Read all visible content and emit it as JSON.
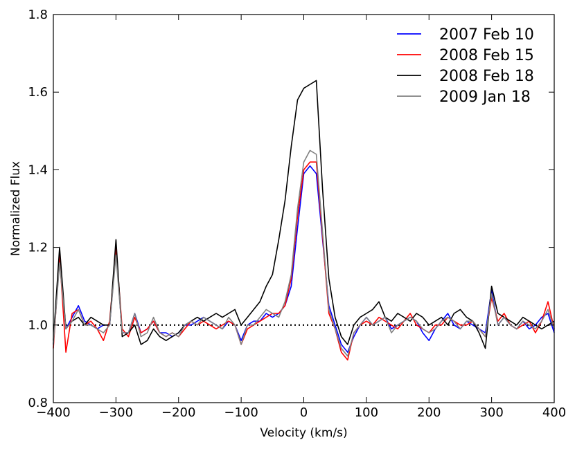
{
  "chart_data": {
    "type": "line",
    "title": "",
    "xlabel": "Velocity (km/s)",
    "ylabel": "Normalized Flux",
    "xlim": [
      -400,
      400
    ],
    "ylim": [
      0.8,
      1.8
    ],
    "xticks": [
      "−400",
      "−300",
      "−200",
      "−100",
      "0",
      "100",
      "200",
      "300",
      "400"
    ],
    "xtick_values": [
      -400,
      -300,
      -200,
      -100,
      0,
      100,
      200,
      300,
      400
    ],
    "yticks": [
      "0.8",
      "1.0",
      "1.2",
      "1.4",
      "1.6",
      "1.8"
    ],
    "ytick_values": [
      0.8,
      1.0,
      1.2,
      1.4,
      1.6,
      1.8
    ],
    "legend_position": "top-right",
    "reference_line": {
      "y": 1.0,
      "style": "dotted",
      "color": "#000000"
    },
    "x": [
      -400,
      -390,
      -380,
      -370,
      -360,
      -350,
      -340,
      -330,
      -320,
      -310,
      -300,
      -290,
      -280,
      -270,
      -260,
      -250,
      -240,
      -230,
      -220,
      -210,
      -200,
      -190,
      -180,
      -170,
      -160,
      -150,
      -140,
      -130,
      -120,
      -110,
      -100,
      -90,
      -80,
      -70,
      -60,
      -50,
      -40,
      -30,
      -20,
      -10,
      0,
      10,
      20,
      30,
      40,
      50,
      60,
      70,
      80,
      90,
      100,
      110,
      120,
      130,
      140,
      150,
      160,
      170,
      180,
      190,
      200,
      210,
      220,
      230,
      240,
      250,
      260,
      270,
      280,
      290,
      300,
      310,
      320,
      330,
      340,
      350,
      360,
      370,
      380,
      390,
      400
    ],
    "series": [
      {
        "name": "2007 Feb 10",
        "color": "#0000ff",
        "values": [
          0.95,
          1.17,
          0.99,
          1.02,
          1.05,
          1.01,
          1.0,
          0.99,
          1.0,
          1.0,
          1.19,
          0.98,
          0.98,
          1.03,
          0.98,
          0.99,
          1.01,
          0.98,
          0.98,
          0.97,
          0.98,
          1.0,
          1.0,
          1.01,
          1.02,
          1.01,
          1.0,
          0.99,
          1.01,
          1.0,
          0.96,
          1.0,
          1.01,
          1.01,
          1.03,
          1.02,
          1.03,
          1.05,
          1.1,
          1.25,
          1.39,
          1.41,
          1.39,
          1.22,
          1.05,
          1.0,
          0.95,
          0.93,
          0.97,
          1.0,
          1.02,
          1.0,
          1.01,
          1.02,
          0.99,
          1.0,
          1.01,
          1.02,
          1.01,
          0.98,
          0.96,
          0.99,
          1.01,
          1.03,
          1.0,
          0.99,
          1.01,
          1.0,
          0.99,
          0.98,
          1.09,
          1.0,
          1.02,
          1.0,
          0.99,
          1.01,
          0.99,
          1.0,
          1.02,
          1.03,
          0.98
        ]
      },
      {
        "name": "2008 Feb 15",
        "color": "#ff0000",
        "values": [
          0.94,
          1.18,
          0.93,
          1.03,
          1.04,
          1.0,
          1.01,
          0.99,
          0.96,
          1.01,
          1.2,
          0.99,
          0.97,
          1.02,
          0.98,
          0.99,
          1.01,
          0.98,
          0.97,
          0.98,
          0.97,
          0.99,
          1.01,
          1.0,
          1.01,
          1.0,
          0.99,
          1.0,
          1.01,
          1.0,
          0.95,
          0.99,
          1.0,
          1.01,
          1.02,
          1.03,
          1.03,
          1.05,
          1.12,
          1.28,
          1.4,
          1.42,
          1.42,
          1.23,
          1.03,
          0.99,
          0.93,
          0.91,
          0.98,
          1.0,
          1.01,
          1.0,
          1.02,
          1.01,
          1.0,
          0.99,
          1.01,
          1.03,
          1.0,
          0.99,
          0.98,
          1.0,
          1.0,
          1.02,
          1.01,
          1.0,
          1.0,
          1.01,
          0.99,
          0.97,
          1.07,
          1.01,
          1.03,
          1.0,
          0.99,
          1.0,
          1.01,
          0.98,
          1.01,
          1.06,
          0.99
        ]
      },
      {
        "name": "2008 Feb 18",
        "color": "#000000",
        "values": [
          0.96,
          1.2,
          0.99,
          1.01,
          1.02,
          1.0,
          1.02,
          1.01,
          1.0,
          1.0,
          1.22,
          0.97,
          0.98,
          1.0,
          0.95,
          0.96,
          0.99,
          0.97,
          0.96,
          0.97,
          0.98,
          1.0,
          1.01,
          1.02,
          1.01,
          1.02,
          1.03,
          1.02,
          1.03,
          1.04,
          1.0,
          1.02,
          1.04,
          1.06,
          1.1,
          1.13,
          1.22,
          1.32,
          1.46,
          1.58,
          1.61,
          1.62,
          1.63,
          1.35,
          1.12,
          1.02,
          0.97,
          0.95,
          1.0,
          1.02,
          1.03,
          1.04,
          1.06,
          1.02,
          1.01,
          1.03,
          1.02,
          1.01,
          1.03,
          1.02,
          1.0,
          1.01,
          1.02,
          1.0,
          1.03,
          1.04,
          1.02,
          1.01,
          0.98,
          0.94,
          1.1,
          1.03,
          1.02,
          1.01,
          1.0,
          1.02,
          1.01,
          1.0,
          0.99,
          1.0,
          1.01
        ]
      },
      {
        "name": "2009 Jan 18",
        "color": "#808080",
        "values": [
          0.95,
          1.16,
          0.99,
          1.01,
          1.04,
          1.0,
          1.0,
          0.99,
          0.98,
          1.0,
          1.18,
          0.98,
          0.98,
          1.03,
          0.97,
          0.98,
          1.02,
          0.98,
          0.97,
          0.98,
          0.97,
          1.0,
          1.01,
          1.0,
          1.02,
          1.01,
          1.0,
          0.99,
          1.02,
          1.0,
          0.95,
          1.0,
          1.0,
          1.02,
          1.04,
          1.03,
          1.02,
          1.06,
          1.13,
          1.3,
          1.42,
          1.45,
          1.44,
          1.24,
          1.04,
          0.99,
          0.94,
          0.92,
          0.98,
          1.0,
          1.02,
          1.0,
          1.01,
          1.02,
          0.98,
          1.0,
          1.01,
          1.02,
          1.01,
          0.99,
          0.98,
          0.99,
          1.01,
          1.02,
          1.01,
          0.99,
          1.01,
          1.01,
          0.99,
          0.97,
          1.08,
          1.0,
          1.02,
          1.0,
          0.99,
          1.01,
          1.0,
          0.99,
          1.01,
          1.04,
          0.99
        ]
      }
    ]
  }
}
